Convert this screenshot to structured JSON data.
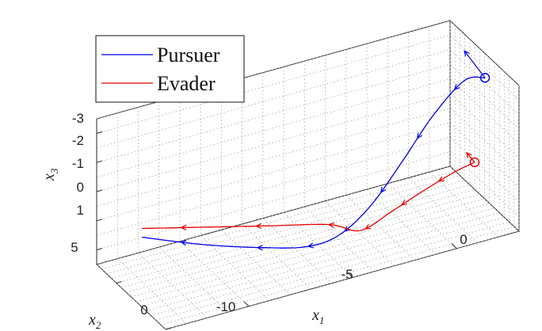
{
  "chart_data": {
    "type": "line",
    "title": "",
    "xlabel": "x",
    "xlabel_sub": "1",
    "ylabel": "x",
    "ylabel_sub": "2",
    "zlabel": "x",
    "zlabel_sub": "3",
    "x_ticks": [
      "-10",
      "-5",
      "0"
    ],
    "y_ticks": [
      "0",
      "5"
    ],
    "z_ticks": [
      "-3",
      "-2",
      "-1",
      "0",
      "1"
    ],
    "xlim": [
      -14,
      3
    ],
    "ylim": [
      0,
      7
    ],
    "zlim": [
      -3.5,
      1.5
    ],
    "grid": true,
    "legend_position": "top-left",
    "series": [
      {
        "name": "Pursuer",
        "color": "#0000e6",
        "points": [
          {
            "x": -14,
            "y": 2.4,
            "z": -0.9
          },
          {
            "x": -11,
            "y": 2.4,
            "z": -0.05
          },
          {
            "x": -8,
            "y": 2.4,
            "z": 0.65
          },
          {
            "x": -6,
            "y": 2.4,
            "z": 1.0
          },
          {
            "x": -4.5,
            "y": 2.4,
            "z": 0.9
          },
          {
            "x": -3,
            "y": 2.4,
            "z": 0.2
          },
          {
            "x": -1.5,
            "y": 2.4,
            "z": -1.0
          },
          {
            "x": 0,
            "y": 2.4,
            "z": -2.3
          },
          {
            "x": 1.5,
            "y": 2.4,
            "z": -3.2
          },
          {
            "x": 2.5,
            "y": 2.4,
            "z": -3.1
          }
        ]
      },
      {
        "name": "Evader",
        "color": "#e60000",
        "points": [
          {
            "x": -14,
            "y": 2.4,
            "z": -1.2
          },
          {
            "x": -11,
            "y": 2.4,
            "z": -0.65
          },
          {
            "x": -8,
            "y": 2.4,
            "z": -0.1
          },
          {
            "x": -5,
            "y": 2.4,
            "z": 0.45
          },
          {
            "x": -3.5,
            "y": 2.4,
            "z": 0.95
          },
          {
            "x": -2,
            "y": 2.4,
            "z": 0.6
          },
          {
            "x": -0.5,
            "y": 2.4,
            "z": 0.2
          },
          {
            "x": 1,
            "y": 2.4,
            "z": -0.15
          },
          {
            "x": 2,
            "y": 2.4,
            "z": -0.3
          }
        ]
      }
    ]
  }
}
